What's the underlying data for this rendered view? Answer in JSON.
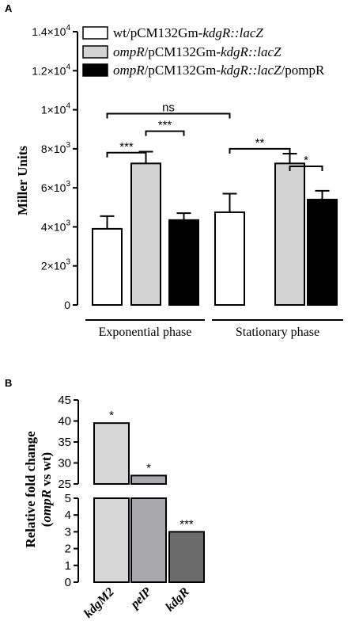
{
  "chart_data": [
    {
      "panel": "A",
      "type": "bar",
      "ylabel": "Miller Units",
      "ylim": [
        0,
        14000
      ],
      "yticks": [
        {
          "value": 0,
          "label": "0"
        },
        {
          "value": 2000,
          "label": "2×10",
          "exp": "3"
        },
        {
          "value": 4000,
          "label": "4×10",
          "exp": "3"
        },
        {
          "value": 6000,
          "label": "6×10",
          "exp": "3"
        },
        {
          "value": 8000,
          "label": "8×10",
          "exp": "3"
        },
        {
          "value": 10000,
          "label": "1×10",
          "exp": "4"
        },
        {
          "value": 12000,
          "label": "1.2×10",
          "exp": "4"
        },
        {
          "value": 14000,
          "label": "1.4×10",
          "exp": "4"
        }
      ],
      "categories": [
        "Exponential phase",
        "Stationary phase"
      ],
      "legend_position": "top",
      "series": [
        {
          "name_parts": [
            {
              "t": "wt/pCM132Gm-",
              "i": false
            },
            {
              "t": "kdgR::lacZ",
              "i": true
            }
          ],
          "values": [
            3900,
            4750
          ],
          "errors": [
            650,
            950
          ],
          "color": "#ffffff"
        },
        {
          "name_parts": [
            {
              "t": "ompR",
              "i": true
            },
            {
              "t": "/pCM132Gm-",
              "i": false
            },
            {
              "t": "kdgR::lacZ",
              "i": true
            }
          ],
          "values": [
            7250,
            7250
          ],
          "errors": [
            600,
            500
          ],
          "color": "#d3d3d3"
        },
        {
          "name_parts": [
            {
              "t": "ompR",
              "i": true
            },
            {
              "t": "/pCM132Gm-",
              "i": false
            },
            {
              "t": "kdgR::lacZ",
              "i": true
            },
            {
              "t": "/pompR",
              "i": false
            }
          ],
          "values": [
            4350,
            5400
          ],
          "errors": [
            350,
            450
          ],
          "color": "#000000"
        }
      ],
      "annotations": [
        {
          "label": "***",
          "from": [
            0,
            0
          ],
          "to": [
            0,
            1
          ],
          "y": 7800
        },
        {
          "label": "***",
          "from": [
            0,
            1
          ],
          "to": [
            0,
            2
          ],
          "y": 8900
        },
        {
          "label": "ns",
          "from": [
            0,
            0
          ],
          "to": [
            1,
            0
          ],
          "y": 9800
        },
        {
          "label": "**",
          "from": [
            1,
            0
          ],
          "to": [
            1,
            1
          ],
          "y": 8000
        },
        {
          "label": "*",
          "from": [
            1,
            1
          ],
          "to": [
            1,
            2
          ],
          "y": 7100
        }
      ]
    },
    {
      "panel": "B",
      "type": "bar",
      "ylabel_line1": "Relative fold change",
      "ylabel_line2_parts": [
        {
          "t": "(",
          "i": false
        },
        {
          "t": "ompR",
          "i": true
        },
        {
          "t": " vs wt)",
          "i": false
        }
      ],
      "axis_break": [
        5,
        25
      ],
      "lower_ticks": [
        0,
        1,
        2,
        3,
        4,
        5
      ],
      "upper_ticks": [
        25,
        30,
        35,
        40,
        45
      ],
      "categories": [
        "kdgM2",
        "pelP",
        "kdgR"
      ],
      "values": [
        39.5,
        27,
        3
      ],
      "colors": [
        "#d7d7d7",
        "#a9a9ad",
        "#6b6b6b"
      ],
      "significance": [
        "*",
        "*",
        "***"
      ]
    }
  ],
  "panel_labels": {
    "a": "A",
    "b": "B"
  }
}
